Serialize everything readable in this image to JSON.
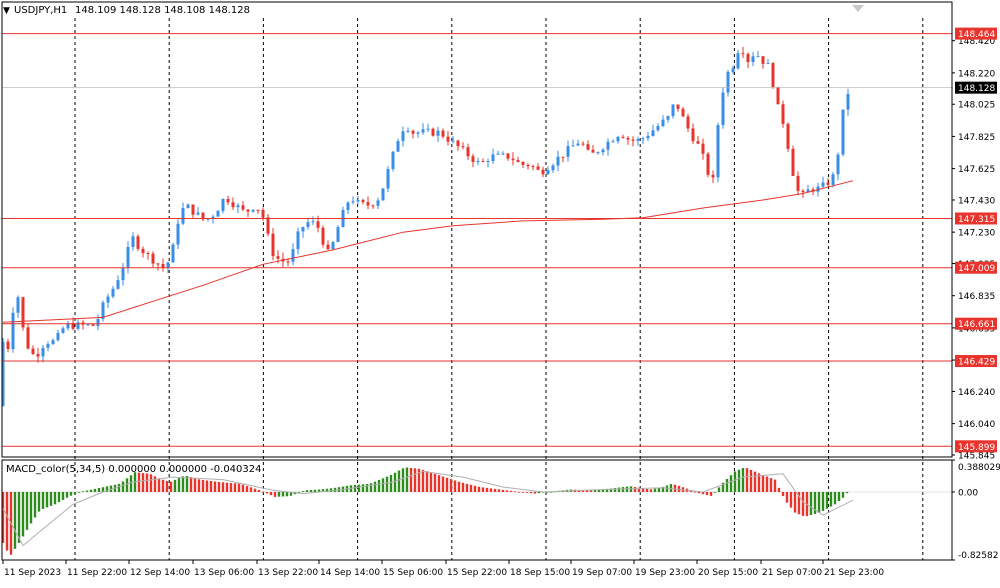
{
  "header": {
    "symbol_timeframe": "USDJPY,H1",
    "ohlc": "148.109 148.128 148.108 148.128",
    "indicator_label": "MACD_color(5,34,5) 0.000000 0.000000 -0.040324"
  },
  "colors": {
    "background": "#ffffff",
    "bull_candle": "#3a8ee6",
    "bear_candle": "#e8342c",
    "moving_average": "#e8342c",
    "level_line": "#e8342c",
    "macd_up": "#2e8b1e",
    "macd_down": "#e8342c",
    "grid": "#000000",
    "axis_text": "#000000"
  },
  "chart_data": [
    {
      "type": "candlestick",
      "symbol": "USDJPY",
      "timeframe": "H1",
      "ylim": [
        145.845,
        148.561
      ],
      "y_ticks": [
        "148.420",
        "148.220",
        "148.025",
        "147.825",
        "147.625",
        "147.430",
        "147.230",
        "147.035",
        "146.835",
        "146.635",
        "146.435",
        "146.240",
        "146.040",
        "145.845"
      ],
      "x_ticks": [
        "11 Sep 2023",
        "11 Sep 22:00",
        "12 Sep 14:00",
        "13 Sep 06:00",
        "13 Sep 22:00",
        "14 Sep 14:00",
        "15 Sep 06:00",
        "15 Sep 22:00",
        "18 Sep 15:00",
        "19 Sep 07:00",
        "19 Sep 23:00",
        "20 Sep 15:00",
        "21 Sep 07:00",
        "21 Sep 23:00"
      ],
      "current_price": "148.128",
      "levels": [
        {
          "price": 148.464,
          "label": "148.464"
        },
        {
          "price": 147.315,
          "label": "147.315"
        },
        {
          "price": 147.009,
          "label": "147.009"
        },
        {
          "price": 146.661,
          "label": "146.661"
        },
        {
          "price": 146.429,
          "label": "146.429"
        },
        {
          "price": 145.899,
          "label": "145.899"
        }
      ],
      "close_path": [
        [
          0,
          146.25
        ],
        [
          4,
          146.65
        ],
        [
          10,
          146.45
        ],
        [
          15,
          146.95
        ],
        [
          25,
          146.55
        ],
        [
          35,
          146.45
        ],
        [
          45,
          146.55
        ],
        [
          55,
          146.55
        ],
        [
          65,
          146.65
        ],
        [
          75,
          146.65
        ],
        [
          85,
          146.65
        ],
        [
          95,
          146.65
        ],
        [
          105,
          146.8
        ],
        [
          115,
          146.9
        ],
        [
          125,
          147.05
        ],
        [
          132,
          147.2
        ],
        [
          138,
          147.15
        ],
        [
          145,
          147.1
        ],
        [
          155,
          147.05
        ],
        [
          165,
          147.0
        ],
        [
          172,
          147.1
        ],
        [
          178,
          147.3
        ],
        [
          185,
          147.4
        ],
        [
          195,
          147.35
        ],
        [
          205,
          147.3
        ],
        [
          215,
          147.35
        ],
        [
          225,
          147.45
        ],
        [
          235,
          147.4
        ],
        [
          245,
          147.35
        ],
        [
          255,
          147.4
        ],
        [
          262,
          147.35
        ],
        [
          268,
          147.2
        ],
        [
          273,
          147.1
        ],
        [
          280,
          147.05
        ],
        [
          290,
          147.05
        ],
        [
          300,
          147.25
        ],
        [
          310,
          147.3
        ],
        [
          320,
          147.25
        ],
        [
          326,
          147.1
        ],
        [
          330,
          147.1
        ],
        [
          340,
          147.3
        ],
        [
          350,
          147.45
        ],
        [
          360,
          147.4
        ],
        [
          370,
          147.4
        ],
        [
          380,
          147.45
        ],
        [
          390,
          147.65
        ],
        [
          395,
          147.75
        ],
        [
          400,
          147.85
        ],
        [
          406,
          147.9
        ],
        [
          412,
          147.85
        ],
        [
          420,
          147.85
        ],
        [
          430,
          147.85
        ],
        [
          440,
          147.85
        ],
        [
          450,
          147.8
        ],
        [
          460,
          147.75
        ],
        [
          470,
          147.7
        ],
        [
          480,
          147.65
        ],
        [
          490,
          147.7
        ],
        [
          500,
          147.7
        ],
        [
          510,
          147.7
        ],
        [
          520,
          147.65
        ],
        [
          530,
          147.65
        ],
        [
          540,
          147.6
        ],
        [
          550,
          147.65
        ],
        [
          560,
          147.7
        ],
        [
          570,
          147.75
        ],
        [
          580,
          147.8
        ],
        [
          590,
          147.7
        ],
        [
          600,
          147.75
        ],
        [
          610,
          147.8
        ],
        [
          620,
          147.85
        ],
        [
          630,
          147.8
        ],
        [
          640,
          147.8
        ],
        [
          650,
          147.85
        ],
        [
          660,
          147.9
        ],
        [
          670,
          147.95
        ],
        [
          675,
          148.05
        ],
        [
          682,
          147.95
        ],
        [
          690,
          147.85
        ],
        [
          700,
          147.75
        ],
        [
          708,
          147.6
        ],
        [
          713,
          147.55
        ],
        [
          718,
          147.9
        ],
        [
          725,
          148.2
        ],
        [
          732,
          148.25
        ],
        [
          740,
          148.4
        ],
        [
          748,
          148.3
        ],
        [
          755,
          148.35
        ],
        [
          762,
          148.3
        ],
        [
          770,
          148.25
        ],
        [
          778,
          148.0
        ],
        [
          784,
          147.9
        ],
        [
          790,
          147.7
        ],
        [
          796,
          147.5
        ],
        [
          802,
          147.45
        ],
        [
          810,
          147.5
        ],
        [
          820,
          147.5
        ],
        [
          830,
          147.55
        ],
        [
          836,
          147.6
        ],
        [
          840,
          147.85
        ],
        [
          845,
          148.05
        ],
        [
          850,
          148.13
        ]
      ],
      "moving_average_path": [
        [
          0,
          146.67
        ],
        [
          100,
          146.7
        ],
        [
          150,
          146.8
        ],
        [
          200,
          146.9
        ],
        [
          260,
          147.03
        ],
        [
          330,
          147.12
        ],
        [
          400,
          147.23
        ],
        [
          450,
          147.27
        ],
        [
          520,
          147.3
        ],
        [
          600,
          147.31
        ],
        [
          640,
          147.32
        ],
        [
          700,
          147.38
        ],
        [
          760,
          147.43
        ],
        [
          800,
          147.47
        ],
        [
          850,
          147.55
        ]
      ]
    },
    {
      "type": "histogram",
      "name": "MACD_color(5,34,5)",
      "ylim": [
        -0.82582,
        0.388029
      ],
      "y_ticks": [
        "0.388029",
        "0.00",
        "-0.82582"
      ],
      "path": [
        [
          0,
          -0.55
        ],
        [
          10,
          -0.78
        ],
        [
          20,
          -0.6
        ],
        [
          30,
          -0.4
        ],
        [
          40,
          -0.22
        ],
        [
          55,
          -0.15
        ],
        [
          70,
          -0.05
        ],
        [
          80,
          0.0
        ],
        [
          100,
          0.05
        ],
        [
          120,
          0.1
        ],
        [
          135,
          0.24
        ],
        [
          150,
          0.22
        ],
        [
          160,
          0.16
        ],
        [
          170,
          0.12
        ],
        [
          185,
          0.2
        ],
        [
          200,
          0.15
        ],
        [
          220,
          0.12
        ],
        [
          240,
          0.1
        ],
        [
          260,
          0.02
        ],
        [
          275,
          -0.06
        ],
        [
          290,
          -0.05
        ],
        [
          305,
          0.02
        ],
        [
          320,
          0.03
        ],
        [
          335,
          0.05
        ],
        [
          350,
          0.08
        ],
        [
          370,
          0.1
        ],
        [
          390,
          0.2
        ],
        [
          405,
          0.3
        ],
        [
          420,
          0.28
        ],
        [
          440,
          0.2
        ],
        [
          460,
          0.12
        ],
        [
          480,
          0.06
        ],
        [
          500,
          0.03
        ],
        [
          520,
          0.0
        ],
        [
          535,
          -0.02
        ],
        [
          550,
          0.0
        ],
        [
          570,
          0.03
        ],
        [
          590,
          0.02
        ],
        [
          610,
          0.04
        ],
        [
          630,
          0.07
        ],
        [
          650,
          0.03
        ],
        [
          660,
          0.05
        ],
        [
          672,
          0.1
        ],
        [
          685,
          0.05
        ],
        [
          700,
          -0.02
        ],
        [
          712,
          -0.05
        ],
        [
          722,
          0.1
        ],
        [
          735,
          0.25
        ],
        [
          745,
          0.3
        ],
        [
          760,
          0.22
        ],
        [
          775,
          0.15
        ],
        [
          785,
          -0.1
        ],
        [
          795,
          -0.25
        ],
        [
          805,
          -0.3
        ],
        [
          820,
          -0.25
        ],
        [
          835,
          -0.15
        ],
        [
          845,
          -0.05
        ],
        [
          850,
          0.04
        ]
      ],
      "signal_path": [
        [
          0,
          -0.2
        ],
        [
          20,
          -0.65
        ],
        [
          40,
          -0.45
        ],
        [
          70,
          -0.15
        ],
        [
          100,
          0.0
        ],
        [
          130,
          0.12
        ],
        [
          170,
          0.18
        ],
        [
          220,
          0.15
        ],
        [
          270,
          0.02
        ],
        [
          300,
          -0.02
        ],
        [
          340,
          0.03
        ],
        [
          390,
          0.12
        ],
        [
          420,
          0.25
        ],
        [
          460,
          0.18
        ],
        [
          500,
          0.06
        ],
        [
          540,
          0.0
        ],
        [
          600,
          0.03
        ],
        [
          660,
          0.05
        ],
        [
          700,
          0.0
        ],
        [
          740,
          0.18
        ],
        [
          780,
          0.22
        ],
        [
          800,
          -0.12
        ],
        [
          820,
          -0.28
        ],
        [
          850,
          -0.1
        ]
      ]
    }
  ]
}
